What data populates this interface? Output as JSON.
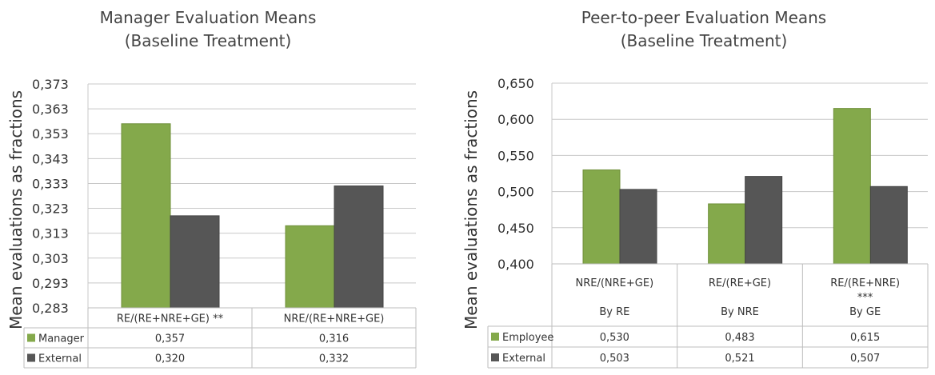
{
  "colors": {
    "manager": "#84A94B",
    "external": "#565656",
    "employee": "#84A94B"
  },
  "chart_data": [
    {
      "type": "bar",
      "title": [
        "Manager Evaluation Means",
        "(Baseline Treatment)"
      ],
      "ylabel": "Mean evaluations as fractions",
      "ylim": [
        0.283,
        0.373
      ],
      "yticks": [
        "0,373",
        "0,363",
        "0,353",
        "0,343",
        "0,333",
        "0,323",
        "0,313",
        "0,303",
        "0,293",
        "0,283"
      ],
      "categories": [
        "RE/(RE+NRE+GE)  **",
        "NRE/(RE+NRE+GE)"
      ],
      "series": [
        {
          "name": "Manager",
          "values": [
            0.357,
            0.316
          ],
          "labels": [
            "0,357",
            "0,316"
          ],
          "color": "#84A94B"
        },
        {
          "name": "External",
          "values": [
            0.32,
            0.332
          ],
          "labels": [
            "0,320",
            "0,332"
          ],
          "color": "#565656"
        }
      ],
      "grid": true,
      "legend": "data-table"
    },
    {
      "type": "bar",
      "title": [
        "Peer-to-peer Evaluation Means",
        "(Baseline Treatment)"
      ],
      "ylabel": "Mean evaluations as fractions",
      "ylim": [
        0.4,
        0.65
      ],
      "yticks": [
        "0,650",
        "0,600",
        "0,550",
        "0,500",
        "0,450",
        "0,400"
      ],
      "categories": [
        {
          "label": "NRE/(NRE+GE)",
          "stars": "",
          "sub": "By RE"
        },
        {
          "label": "RE/(RE+GE)",
          "stars": "",
          "sub": "By NRE"
        },
        {
          "label": "RE/(RE+NRE)",
          "stars": "***",
          "sub": "By GE"
        }
      ],
      "series": [
        {
          "name": "Employee",
          "values": [
            0.53,
            0.483,
            0.615
          ],
          "labels": [
            "0,530",
            "0,483",
            "0,615"
          ],
          "color": "#84A94B"
        },
        {
          "name": "External",
          "values": [
            0.503,
            0.521,
            0.507
          ],
          "labels": [
            "0,503",
            "0,521",
            "0,507"
          ],
          "color": "#565656"
        }
      ],
      "grid": true,
      "legend": "data-table"
    }
  ]
}
